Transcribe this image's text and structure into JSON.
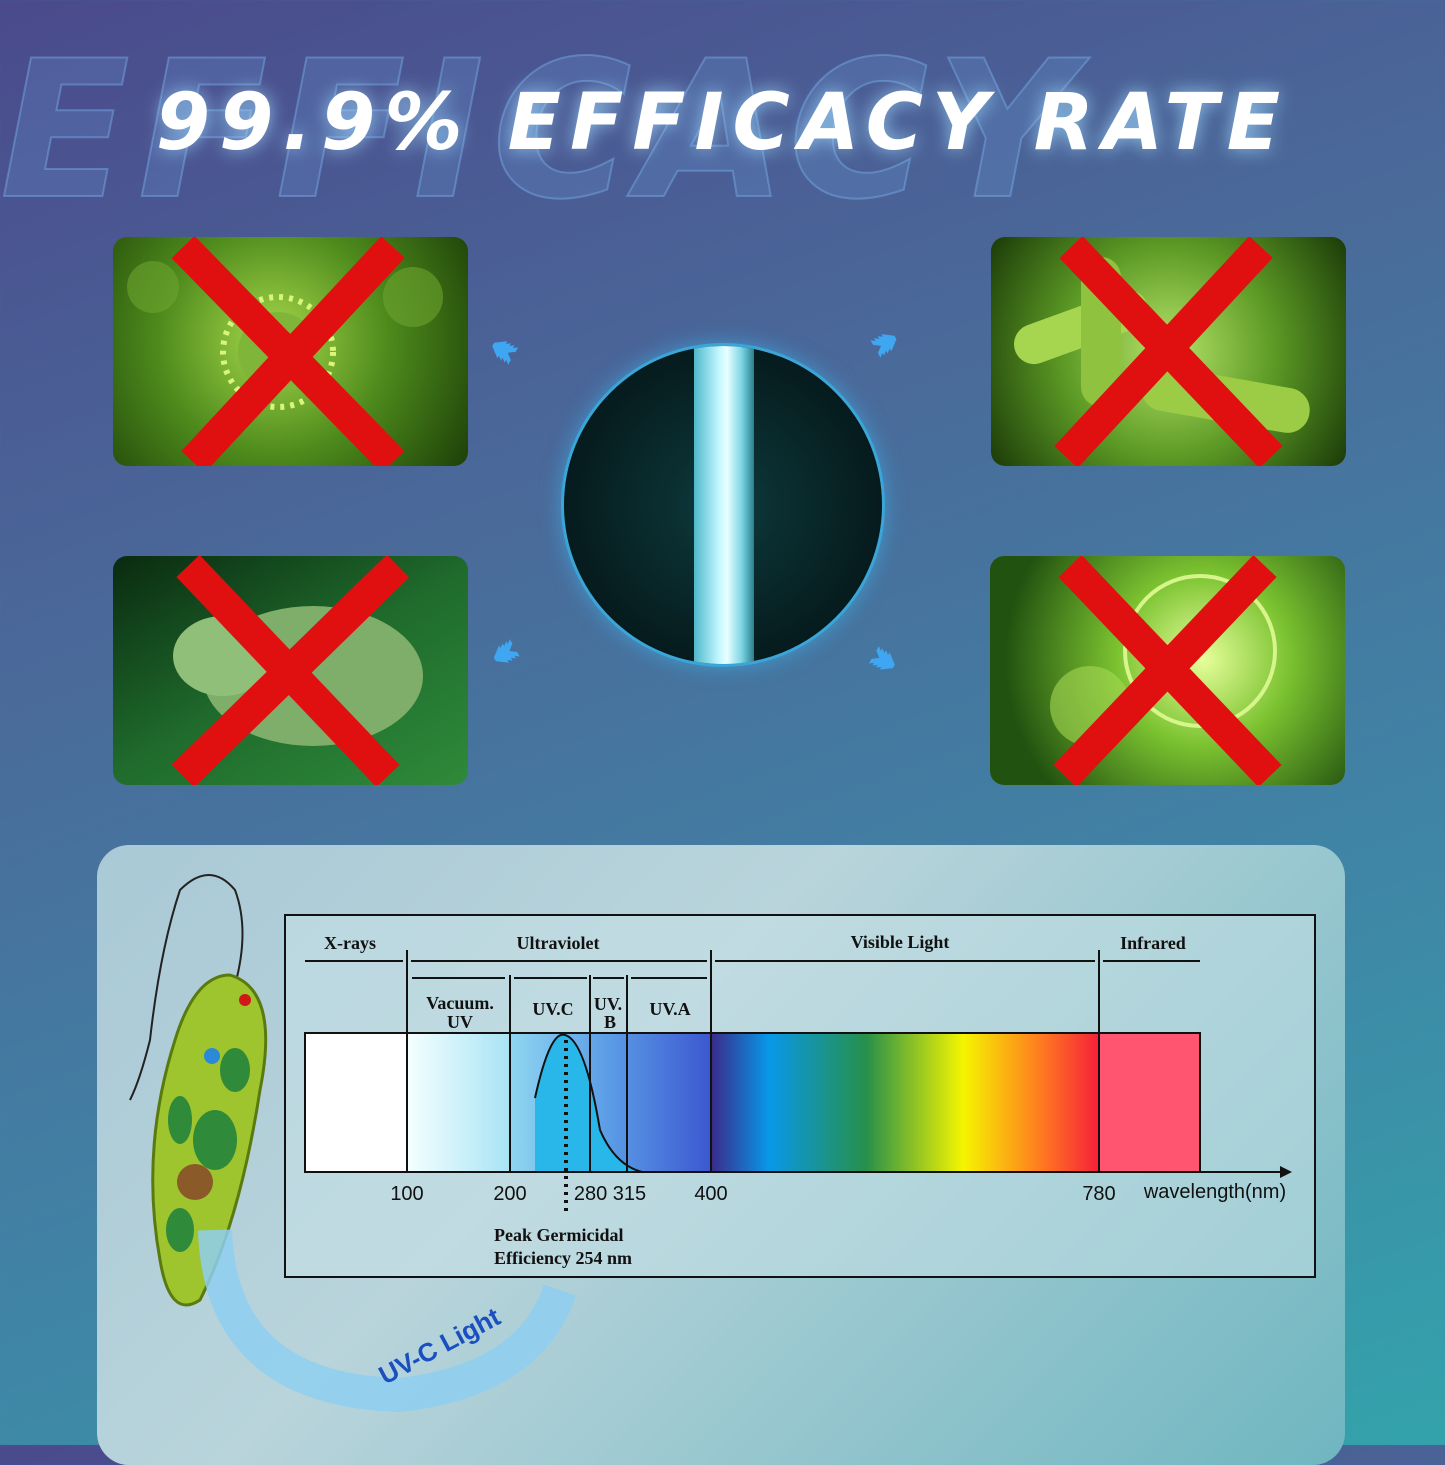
{
  "header": {
    "title": "99.9% EFFICACY RATE",
    "watermark": "EFFICACY"
  },
  "cards": [
    {
      "subject": "virus",
      "icon": "red-x-icon"
    },
    {
      "subject": "bacteria",
      "icon": "red-x-icon"
    },
    {
      "subject": "dust-mite",
      "icon": "red-x-icon"
    },
    {
      "subject": "mold-spores",
      "icon": "red-x-icon"
    }
  ],
  "colors": {
    "accent": "#3fa6f2",
    "cross": "#e01010",
    "uvc": "#29b6e8"
  },
  "spectrum": {
    "regions": {
      "xrays": "X-rays",
      "ultraviolet": "Ultraviolet",
      "visible": "Visible Light",
      "infrared": "Infrared"
    },
    "uv_bands": {
      "vacuum_1": "Vacuum.",
      "vacuum_2": "UV",
      "uvc": "UV.C",
      "uvb_1": "UV.",
      "uvb_2": "B",
      "uva": "UV.A"
    },
    "ticks": [
      "100",
      "200",
      "280 315",
      "400",
      "780"
    ],
    "axis_label": "wavelength(nm)",
    "peak_1": "Peak Germicidal",
    "peak_2": "Efficiency 254 nm"
  },
  "uvc_label": "UV-C Light"
}
